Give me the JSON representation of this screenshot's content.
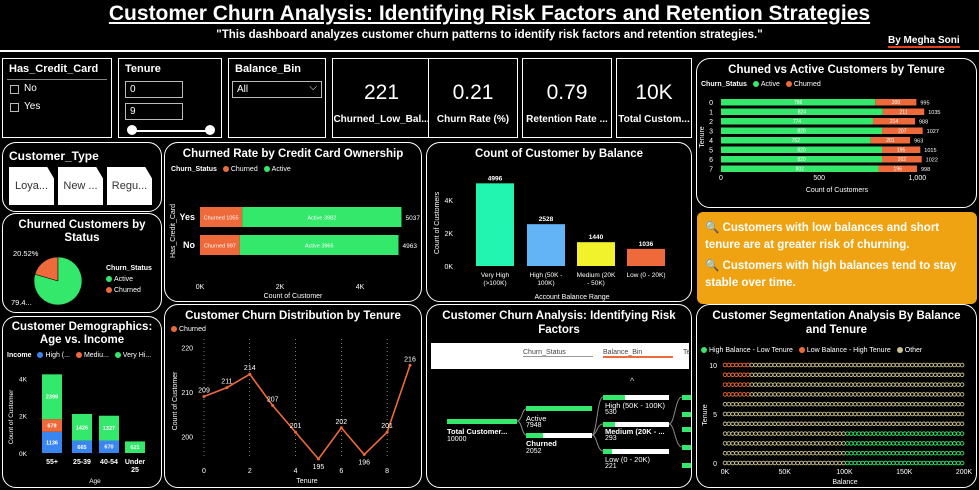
{
  "header": {
    "title": "Customer Churn Analysis: Identifying Risk Factors and Retention Strategies",
    "subtitle": "\"This dashboard analyzes customer churn patterns to identify risk factors and retention strategies.\"",
    "author": "By Megha Soni"
  },
  "slicers": {
    "credit_card": {
      "title": "Has_Credit_Card",
      "options": [
        "No",
        "Yes"
      ]
    },
    "tenure": {
      "title": "Tenure",
      "min": "0",
      "max": "9"
    },
    "balance_bin": {
      "title": "Balance_Bin",
      "selected": "All"
    },
    "customer_type": {
      "title": "Customer_Type",
      "options": [
        "Loya...",
        "New ...",
        "Regu..."
      ]
    }
  },
  "kpis": [
    {
      "value": "221",
      "label": "Churned_Low_Bal..."
    },
    {
      "value": "0.21",
      "label": "Churn Rate (%)"
    },
    {
      "value": "0.79",
      "label": "Retention Rate ..."
    },
    {
      "value": "10K",
      "label": "Total Custom..."
    }
  ],
  "colors": {
    "active": "#33e86a",
    "churned": "#ee6a3a",
    "highlight": "#f0a312",
    "high": "#3a86f0",
    "medium": "#ee6a3a",
    "very_high": "#33e86a",
    "bal_very_high": "#22f5b0",
    "bal_high": "#62b4f6",
    "bal_medium": "#f2f22c",
    "bal_low": "#ee6a3a",
    "sage": "#c9c08c"
  },
  "insights": [
    "🔍 Customers with low balances and short tenure are at greater risk of churning.",
    "🔍 Customers with high balances tend to stay stable over time."
  ],
  "charts": {
    "tenure_bars": {
      "title": "Chuned vs Active Customers by Tenure",
      "legend_title": "Churn_Status",
      "legend": [
        "Active",
        "Churned"
      ],
      "yaxis_label": "Tenure",
      "xaxis_label": "Count of Customers",
      "xticks": [
        "0",
        "500",
        "1,000"
      ]
    },
    "credit_card": {
      "title": "Churned Rate by Credit Card Ownership",
      "legend_title": "Churn_Status",
      "legend": [
        "Churned",
        "Active"
      ],
      "yaxis_label": "Has_Credit_Card",
      "xaxis_label": "Count of Customer",
      "xticks": [
        "0K",
        "2K",
        "4K"
      ]
    },
    "balance": {
      "title": "Count of Customer by Balance",
      "yaxis_label": "Count of Customers",
      "xaxis_label": "Account Balance Range",
      "yticks": [
        "0K",
        "2K",
        "4K"
      ]
    },
    "status_pie": {
      "title": "Churned Customers by Status",
      "legend_title": "Churn_Status",
      "legend": [
        "Active",
        "Churned"
      ],
      "labels": [
        "20.52%",
        "79.4..."
      ]
    },
    "demographics": {
      "title": "Customer Demographics: Age vs. Income",
      "legend_title": "Income",
      "legend": [
        "High (...",
        "Mediu...",
        "Very Hi..."
      ],
      "yaxis_label": "Count of Customer",
      "xaxis_label": "Age",
      "yticks": [
        "0K",
        "2K",
        "4K"
      ]
    },
    "churn_tenure": {
      "title": "Customer Churn Distribution by Tenure",
      "legend": [
        "Churned"
      ],
      "yaxis_label": "Count of Customer",
      "xaxis_label": "Tenure",
      "yticks": [
        "200",
        "210",
        "220"
      ],
      "xticks": [
        "0",
        "2",
        "4",
        "6",
        "8"
      ]
    },
    "decomp": {
      "title": "Customer Churn Analysis: Identifying Risk Factors",
      "col1": "Churn_Status",
      "col2": "Balance_Bin",
      "col3": "Te",
      "root_label": "Total Customer...",
      "root_value": "10000",
      "active_label": "Active",
      "active_value": "7948",
      "churned_label": "Churned",
      "churned_value": "2052",
      "bins": [
        {
          "label": "High (50K - 100K)",
          "value": "530"
        },
        {
          "label": "Medium (20K - ...",
          "value": "293"
        },
        {
          "label": "Low (0 - 20K)",
          "value": "221"
        }
      ],
      "chevron": "^"
    },
    "segmentation": {
      "title": "Customer Segmentation Analysis By Balance and Tenure",
      "legend": [
        "High Balance - Low Tenure",
        "Low Balance - High Tenure",
        "Other"
      ],
      "yaxis_label": "Tenure",
      "xaxis_label": "Balance",
      "xticks": [
        "0K",
        "50K",
        "100K",
        "150K",
        "200K"
      ],
      "yticks": [
        "0",
        "5",
        "10"
      ]
    }
  },
  "chart_data": [
    {
      "type": "bar",
      "title": "Chuned vs Active Customers by Tenure",
      "categories": [
        "0",
        "1",
        "2",
        "3",
        "4",
        "5",
        "6",
        "7"
      ],
      "series": [
        {
          "name": "Active",
          "values": [
            786,
            824,
            774,
            820,
            762,
            820,
            820,
            802
          ]
        },
        {
          "name": "Churned",
          "values": [
            209,
            211,
            214,
            207,
            201,
            195,
            202,
            196
          ]
        }
      ],
      "totals": [
        995,
        1035,
        988,
        1027,
        963,
        1015,
        1022,
        998
      ],
      "xlabel": "Count of Customers",
      "ylabel": "Tenure",
      "xlim": [
        0,
        1100
      ]
    },
    {
      "type": "bar",
      "title": "Churned Rate by Credit Card Ownership",
      "categories": [
        "Yes",
        "No"
      ],
      "series": [
        {
          "name": "Churned",
          "values": [
            1055,
            997
          ]
        },
        {
          "name": "Active",
          "values": [
            3982,
            3966
          ]
        }
      ],
      "totals": [
        5037,
        4963
      ],
      "segment_labels": [
        [
          "Churned 1055",
          "Active 3982"
        ],
        [
          "Churned 997",
          "Active 3966"
        ]
      ],
      "xlabel": "Count of Customer",
      "ylabel": "Has_Credit_Card",
      "xlim": [
        0,
        5200
      ]
    },
    {
      "type": "bar",
      "title": "Count of Customer by Balance",
      "categories": [
        "Very High (>100K)",
        "High (50K - 100K)",
        "Medium (20K - 50K)",
        "Low (0 - 20K)"
      ],
      "values": [
        4996,
        2528,
        1440,
        1036
      ],
      "xlabel": "Account Balance Range",
      "ylabel": "Count of Customers",
      "ylim": [
        0,
        5500
      ]
    },
    {
      "type": "pie",
      "title": "Churned Customers by Status",
      "categories": [
        "Active",
        "Churned"
      ],
      "values": [
        79.48,
        20.52
      ]
    },
    {
      "type": "bar",
      "title": "Customer Demographics: Age vs. Income",
      "categories": [
        "55+",
        "25-39",
        "40-54",
        "Under 25"
      ],
      "series": [
        {
          "name": "High (...",
          "values": [
            1136,
            665,
            670,
            0
          ]
        },
        {
          "name": "Mediu...",
          "values": [
            679,
            0,
            0,
            0
          ]
        },
        {
          "name": "Very Hi...",
          "values": [
            2399,
            1426,
            1327,
            621
          ]
        }
      ],
      "xlabel": "Age",
      "ylabel": "Count of Customer",
      "ylim": [
        0,
        4500
      ]
    },
    {
      "type": "line",
      "title": "Customer Churn Distribution by Tenure",
      "x": [
        0,
        1,
        2,
        3,
        4,
        5,
        6,
        7,
        8,
        9
      ],
      "series": [
        {
          "name": "Churned",
          "values": [
            209,
            211,
            214,
            207,
            201,
            195,
            202,
            196,
            201,
            216
          ]
        }
      ],
      "xlabel": "Tenure",
      "ylabel": "Count of Customer",
      "ylim": [
        195,
        221
      ]
    }
  ]
}
